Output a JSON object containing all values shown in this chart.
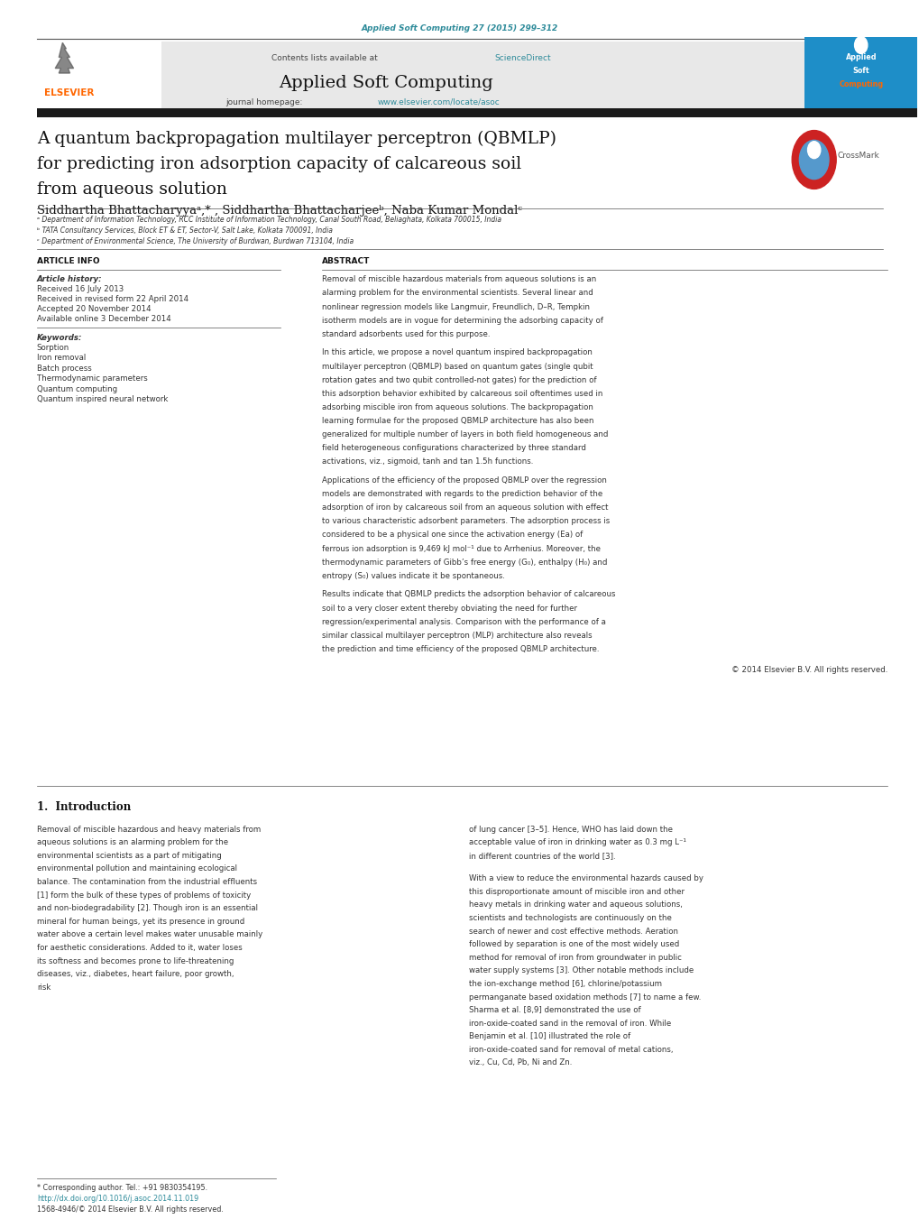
{
  "page_width": 10.2,
  "page_height": 13.51,
  "bg_color": "#ffffff",
  "journal_ref": "Applied Soft Computing 27 (2015) 299–312",
  "journal_ref_color": "#2e8b9a",
  "sciencedirect_color": "#2e8b9a",
  "journal_url_color": "#2e8b9a",
  "elsevier_color": "#FF6600",
  "header_bg": "#e8e8e8",
  "paper_title_line1": "A quantum backpropagation multilayer perceptron (QBMLP)",
  "paper_title_line2": "for predicting iron adsorption capacity of calcareous soil",
  "paper_title_line3": "from aqueous solution",
  "affil_a": "ᵃ Department of Information Technology, RCC Institute of Information Technology, Canal South Road, Beliaghata, Kolkata 700015, India",
  "affil_b": "ᵇ TATA Consultancy Services, Block ET & ET, Sector-V, Salt Lake, Kolkata 700091, India",
  "affil_c": "ᶜ Department of Environmental Science, The University of Burdwan, Burdwan 713104, India",
  "article_info_title": "ARTICLE INFO",
  "article_history_label": "Article history:",
  "received": "Received 16 July 2013",
  "revised": "Received in revised form 22 April 2014",
  "accepted": "Accepted 20 November 2014",
  "available": "Available online 3 December 2014",
  "keywords_label": "Keywords:",
  "keywords": [
    "Sorption",
    "Iron removal",
    "Batch process",
    "Thermodynamic parameters",
    "Quantum computing",
    "Quantum inspired neural network"
  ],
  "abstract_title": "ABSTRACT",
  "abstract_para1": "Removal of miscible hazardous materials from aqueous solutions is an alarming problem for the environmental scientists. Several linear and nonlinear regression models like Langmuir, Freundlich, D–R, Tempkin isotherm models are in vogue for determining the adsorbing capacity of standard adsorbents used for this purpose.",
  "abstract_para2": "    In this article, we propose a novel quantum inspired backpropagation multilayer perceptron (QBMLP) based on quantum gates (single qubit rotation gates and two qubit controlled-not gates) for the prediction of this adsorption behavior exhibited by calcareous soil oftentimes used in adsorbing miscible iron from aqueous solutions. The backpropagation learning formulae for the proposed QBMLP architecture has also been generalized for multiple number of layers in both field homogeneous and field heterogeneous configurations characterized by three standard activations, viz., sigmoid, tanh and tan 1.5h functions.",
  "abstract_para3": "    Applications of the efficiency of the proposed QBMLP over the regression models are demonstrated with regards to the prediction behavior of the adsorption of iron by calcareous soil from an aqueous solution with effect to various characteristic adsorbent parameters. The adsorption process is considered to be a physical one since the activation energy (Ea) of ferrous ion adsorption is 9,469 kJ mol⁻¹ due to Arrhenius. Moreover, the thermodynamic parameters of Gibb’s free energy (G₀), enthalpy (H₀) and entropy (S₀) values indicate it be spontaneous.",
  "abstract_para4": "    Results indicate that QBMLP predicts the adsorption behavior of calcareous soil to a very closer extent thereby obviating the need for further regression/experimental analysis. Comparison with the performance of a similar classical multilayer perceptron (MLP) architecture also reveals the prediction and time efficiency of the proposed QBMLP architecture.",
  "copyright": "© 2014 Elsevier B.V. All rights reserved.",
  "intro_title": "1.  Introduction",
  "intro_para1": "Removal of miscible hazardous and heavy materials from aqueous solutions is an alarming problem for the environmental scientists as a part of mitigating environmental pollution and maintaining ecological balance. The contamination from the industrial effluents [1] form the bulk of these types of problems of toxicity and non-biodegradability [2]. Though iron is an essential mineral for human beings, yet its presence in ground water above a certain level makes water unusable mainly for aesthetic considerations. Added to it, water loses its softness and becomes prone to life-threatening diseases, viz., diabetes, heart failure, poor growth, risk",
  "intro_para2": "of lung cancer [3–5]. Hence, WHO has laid down the acceptable value of iron in drinking water as 0.3 mg L⁻¹ in different countries of the world [3].",
  "intro_para3": "    With a view to reduce the environmental hazards caused by this disproportionate amount of miscible iron and other heavy metals in drinking water and aqueous solutions, scientists and technologists are continuously on the search of newer and cost effective methods. Aeration followed by separation is one of the most widely used method for removal of iron from groundwater in public water supply systems [3]. Other notable methods include the ion-exchange method [6], chlorine/potassium permanganate based oxidation methods [7] to name a few. Sharma et al. [8,9] demonstrated the use of iron-oxide-coated sand in the removal of iron. While Benjamin et al. [10] illustrated the role of iron-oxide-coated sand for removal of metal cations, viz., Cu, Cd, Pb, Ni and Zn.",
  "footnote": "* Corresponding author. Tel.: +91 9830354195.",
  "doi_text": "http://dx.doi.org/10.1016/j.asoc.2014.11.019",
  "doi_color": "#2e8b9a",
  "issn_text": "1568-4946/© 2014 Elsevier B.V. All rights reserved."
}
